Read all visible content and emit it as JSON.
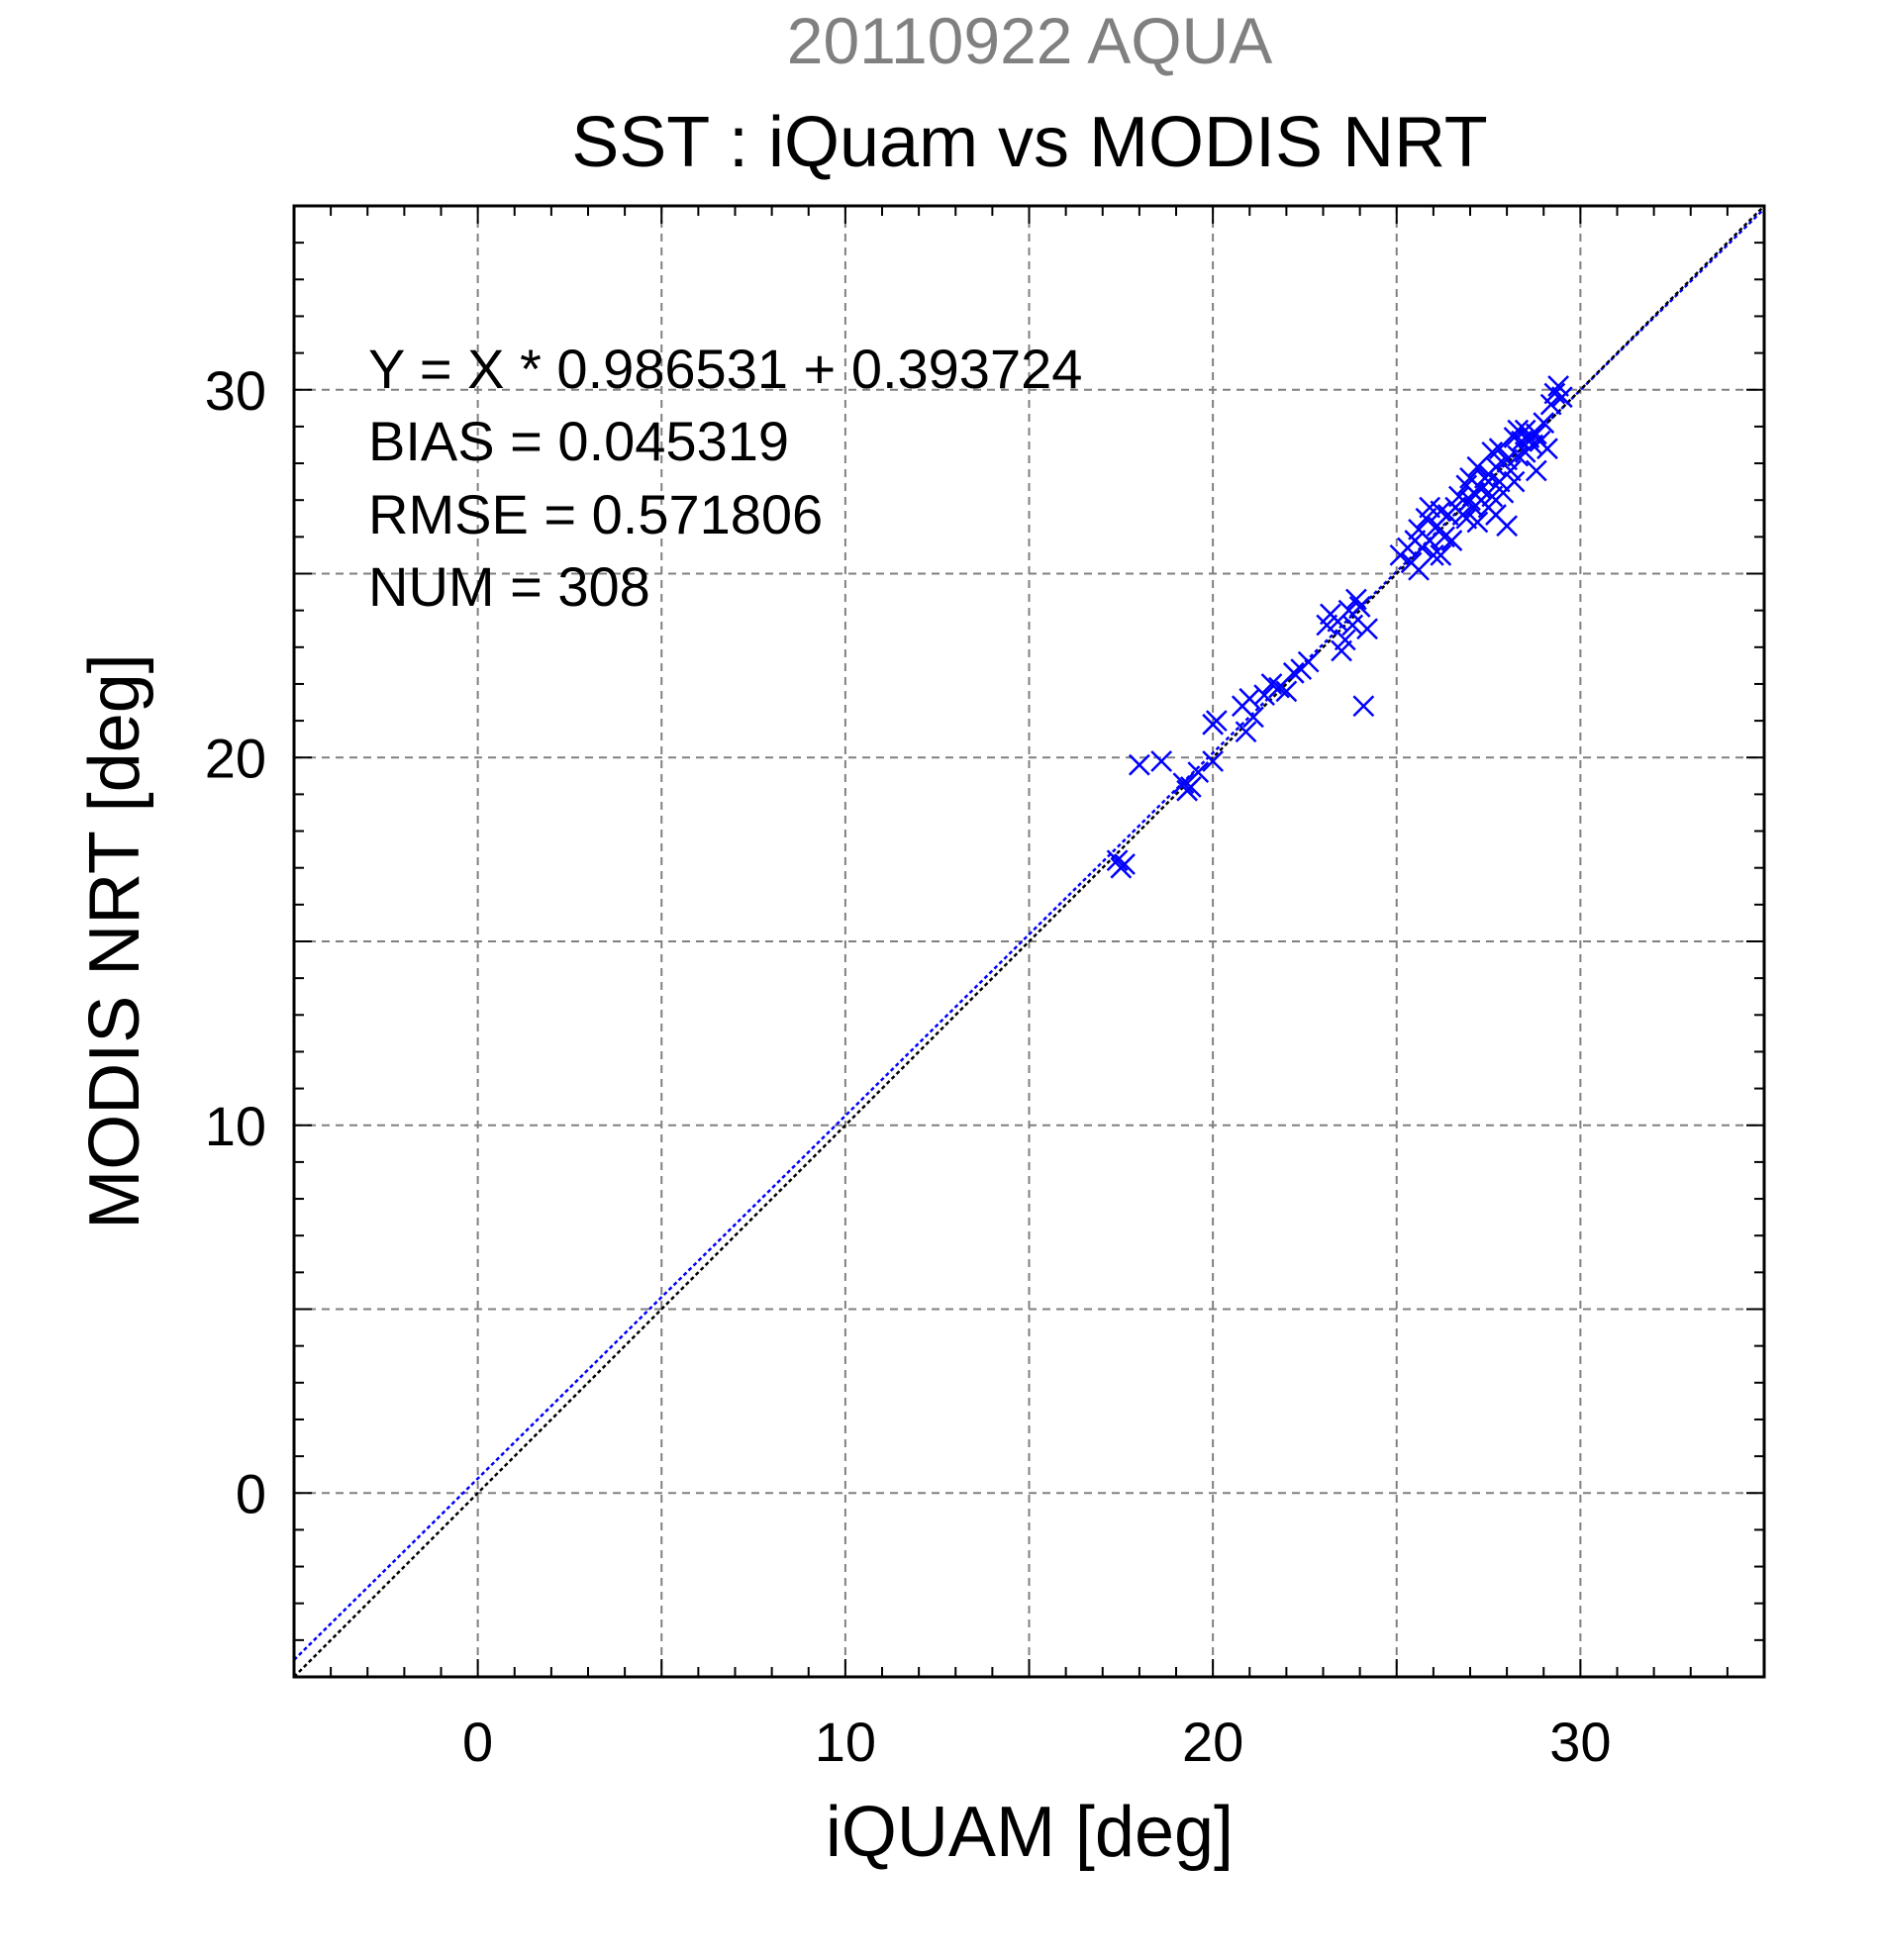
{
  "header": {
    "date_line": "20110922 AQUA",
    "title": "SST : iQuam vs MODIS NRT"
  },
  "stats": {
    "regression": "Y = X * 0.986531 + 0.393724",
    "bias": "BIAS = 0.045319",
    "rmse": "RMSE = 0.571806",
    "num": "NUM = 308"
  },
  "colors": {
    "points": "#0000ff",
    "fit_line": "#0000ff",
    "identity_line": "#000000",
    "grid": "#808080",
    "date_text": "#808080"
  },
  "chart_data": {
    "type": "scatter",
    "title": "SST : iQuam vs MODIS NRT",
    "subtitle": "20110922 AQUA",
    "xlabel": "iQUAM [deg]",
    "ylabel": "MODIS NRT [deg]",
    "xlim": [
      -5,
      35
    ],
    "ylim": [
      -5,
      35
    ],
    "xticks": [
      0,
      10,
      20,
      30
    ],
    "yticks": [
      0,
      10,
      20,
      30
    ],
    "grid": true,
    "marker": "x",
    "lines": [
      {
        "kind": "regression",
        "slope": 0.986531,
        "intercept": 0.393724
      },
      {
        "kind": "identity",
        "slope": 1,
        "intercept": 0
      }
    ],
    "points": [
      [
        17.4,
        17.2
      ],
      [
        17.6,
        17.1
      ],
      [
        17.5,
        17.0
      ],
      [
        18.0,
        19.8
      ],
      [
        18.6,
        19.9
      ],
      [
        19.2,
        19.3
      ],
      [
        19.3,
        19.1
      ],
      [
        19.4,
        19.2
      ],
      [
        19.6,
        19.6
      ],
      [
        20.0,
        20.9
      ],
      [
        20.1,
        21.0
      ],
      [
        20.0,
        19.9
      ],
      [
        20.8,
        21.4
      ],
      [
        20.9,
        20.7
      ],
      [
        21.0,
        21.6
      ],
      [
        21.1,
        21.1
      ],
      [
        21.4,
        21.7
      ],
      [
        21.6,
        22.0
      ],
      [
        21.8,
        21.9
      ],
      [
        22.0,
        21.8
      ],
      [
        22.2,
        22.3
      ],
      [
        22.4,
        22.4
      ],
      [
        22.6,
        22.6
      ],
      [
        23.1,
        23.6
      ],
      [
        23.2,
        23.9
      ],
      [
        23.4,
        23.7
      ],
      [
        23.5,
        22.9
      ],
      [
        23.6,
        23.2
      ],
      [
        23.7,
        24.0
      ],
      [
        23.8,
        23.6
      ],
      [
        23.9,
        24.3
      ],
      [
        24.0,
        24.1
      ],
      [
        24.1,
        21.4
      ],
      [
        24.2,
        23.5
      ],
      [
        25.1,
        25.5
      ],
      [
        25.3,
        25.7
      ],
      [
        25.4,
        25.3
      ],
      [
        25.5,
        25.9
      ],
      [
        25.6,
        25.1
      ],
      [
        25.6,
        26.2
      ],
      [
        25.7,
        25.7
      ],
      [
        25.8,
        26.5
      ],
      [
        25.9,
        25.9
      ],
      [
        25.9,
        26.8
      ],
      [
        26.0,
        25.5
      ],
      [
        26.1,
        26.3
      ],
      [
        26.2,
        26.7
      ],
      [
        26.2,
        25.5
      ],
      [
        26.3,
        26.0
      ],
      [
        26.4,
        26.6
      ],
      [
        26.5,
        25.9
      ],
      [
        26.6,
        26.8
      ],
      [
        26.7,
        27.1
      ],
      [
        26.8,
        26.6
      ],
      [
        26.9,
        27.4
      ],
      [
        26.9,
        26.5
      ],
      [
        27.0,
        27.0
      ],
      [
        27.0,
        27.6
      ],
      [
        27.1,
        26.8
      ],
      [
        27.1,
        27.2
      ],
      [
        27.2,
        26.4
      ],
      [
        27.2,
        27.9
      ],
      [
        27.3,
        27.3
      ],
      [
        27.3,
        27.0
      ],
      [
        27.4,
        27.6
      ],
      [
        27.5,
        26.8
      ],
      [
        27.5,
        27.7
      ],
      [
        27.6,
        28.3
      ],
      [
        27.6,
        27.1
      ],
      [
        27.7,
        27.9
      ],
      [
        27.7,
        26.6
      ],
      [
        27.8,
        27.5
      ],
      [
        27.8,
        28.4
      ],
      [
        27.9,
        27.2
      ],
      [
        28.0,
        28.1
      ],
      [
        28.0,
        26.3
      ],
      [
        28.1,
        27.8
      ],
      [
        28.2,
        28.7
      ],
      [
        28.2,
        27.5
      ],
      [
        28.3,
        28.9
      ],
      [
        28.3,
        28.2
      ],
      [
        28.4,
        28.6
      ],
      [
        28.5,
        28.3
      ],
      [
        28.5,
        28.9
      ],
      [
        28.6,
        28.7
      ],
      [
        28.7,
        28.5
      ],
      [
        28.8,
        28.8
      ],
      [
        28.8,
        27.8
      ],
      [
        28.9,
        28.6
      ],
      [
        29.0,
        29.1
      ],
      [
        29.1,
        28.4
      ],
      [
        29.2,
        29.6
      ],
      [
        29.3,
        29.9
      ],
      [
        29.4,
        30.1
      ],
      [
        29.5,
        29.8
      ]
    ]
  }
}
